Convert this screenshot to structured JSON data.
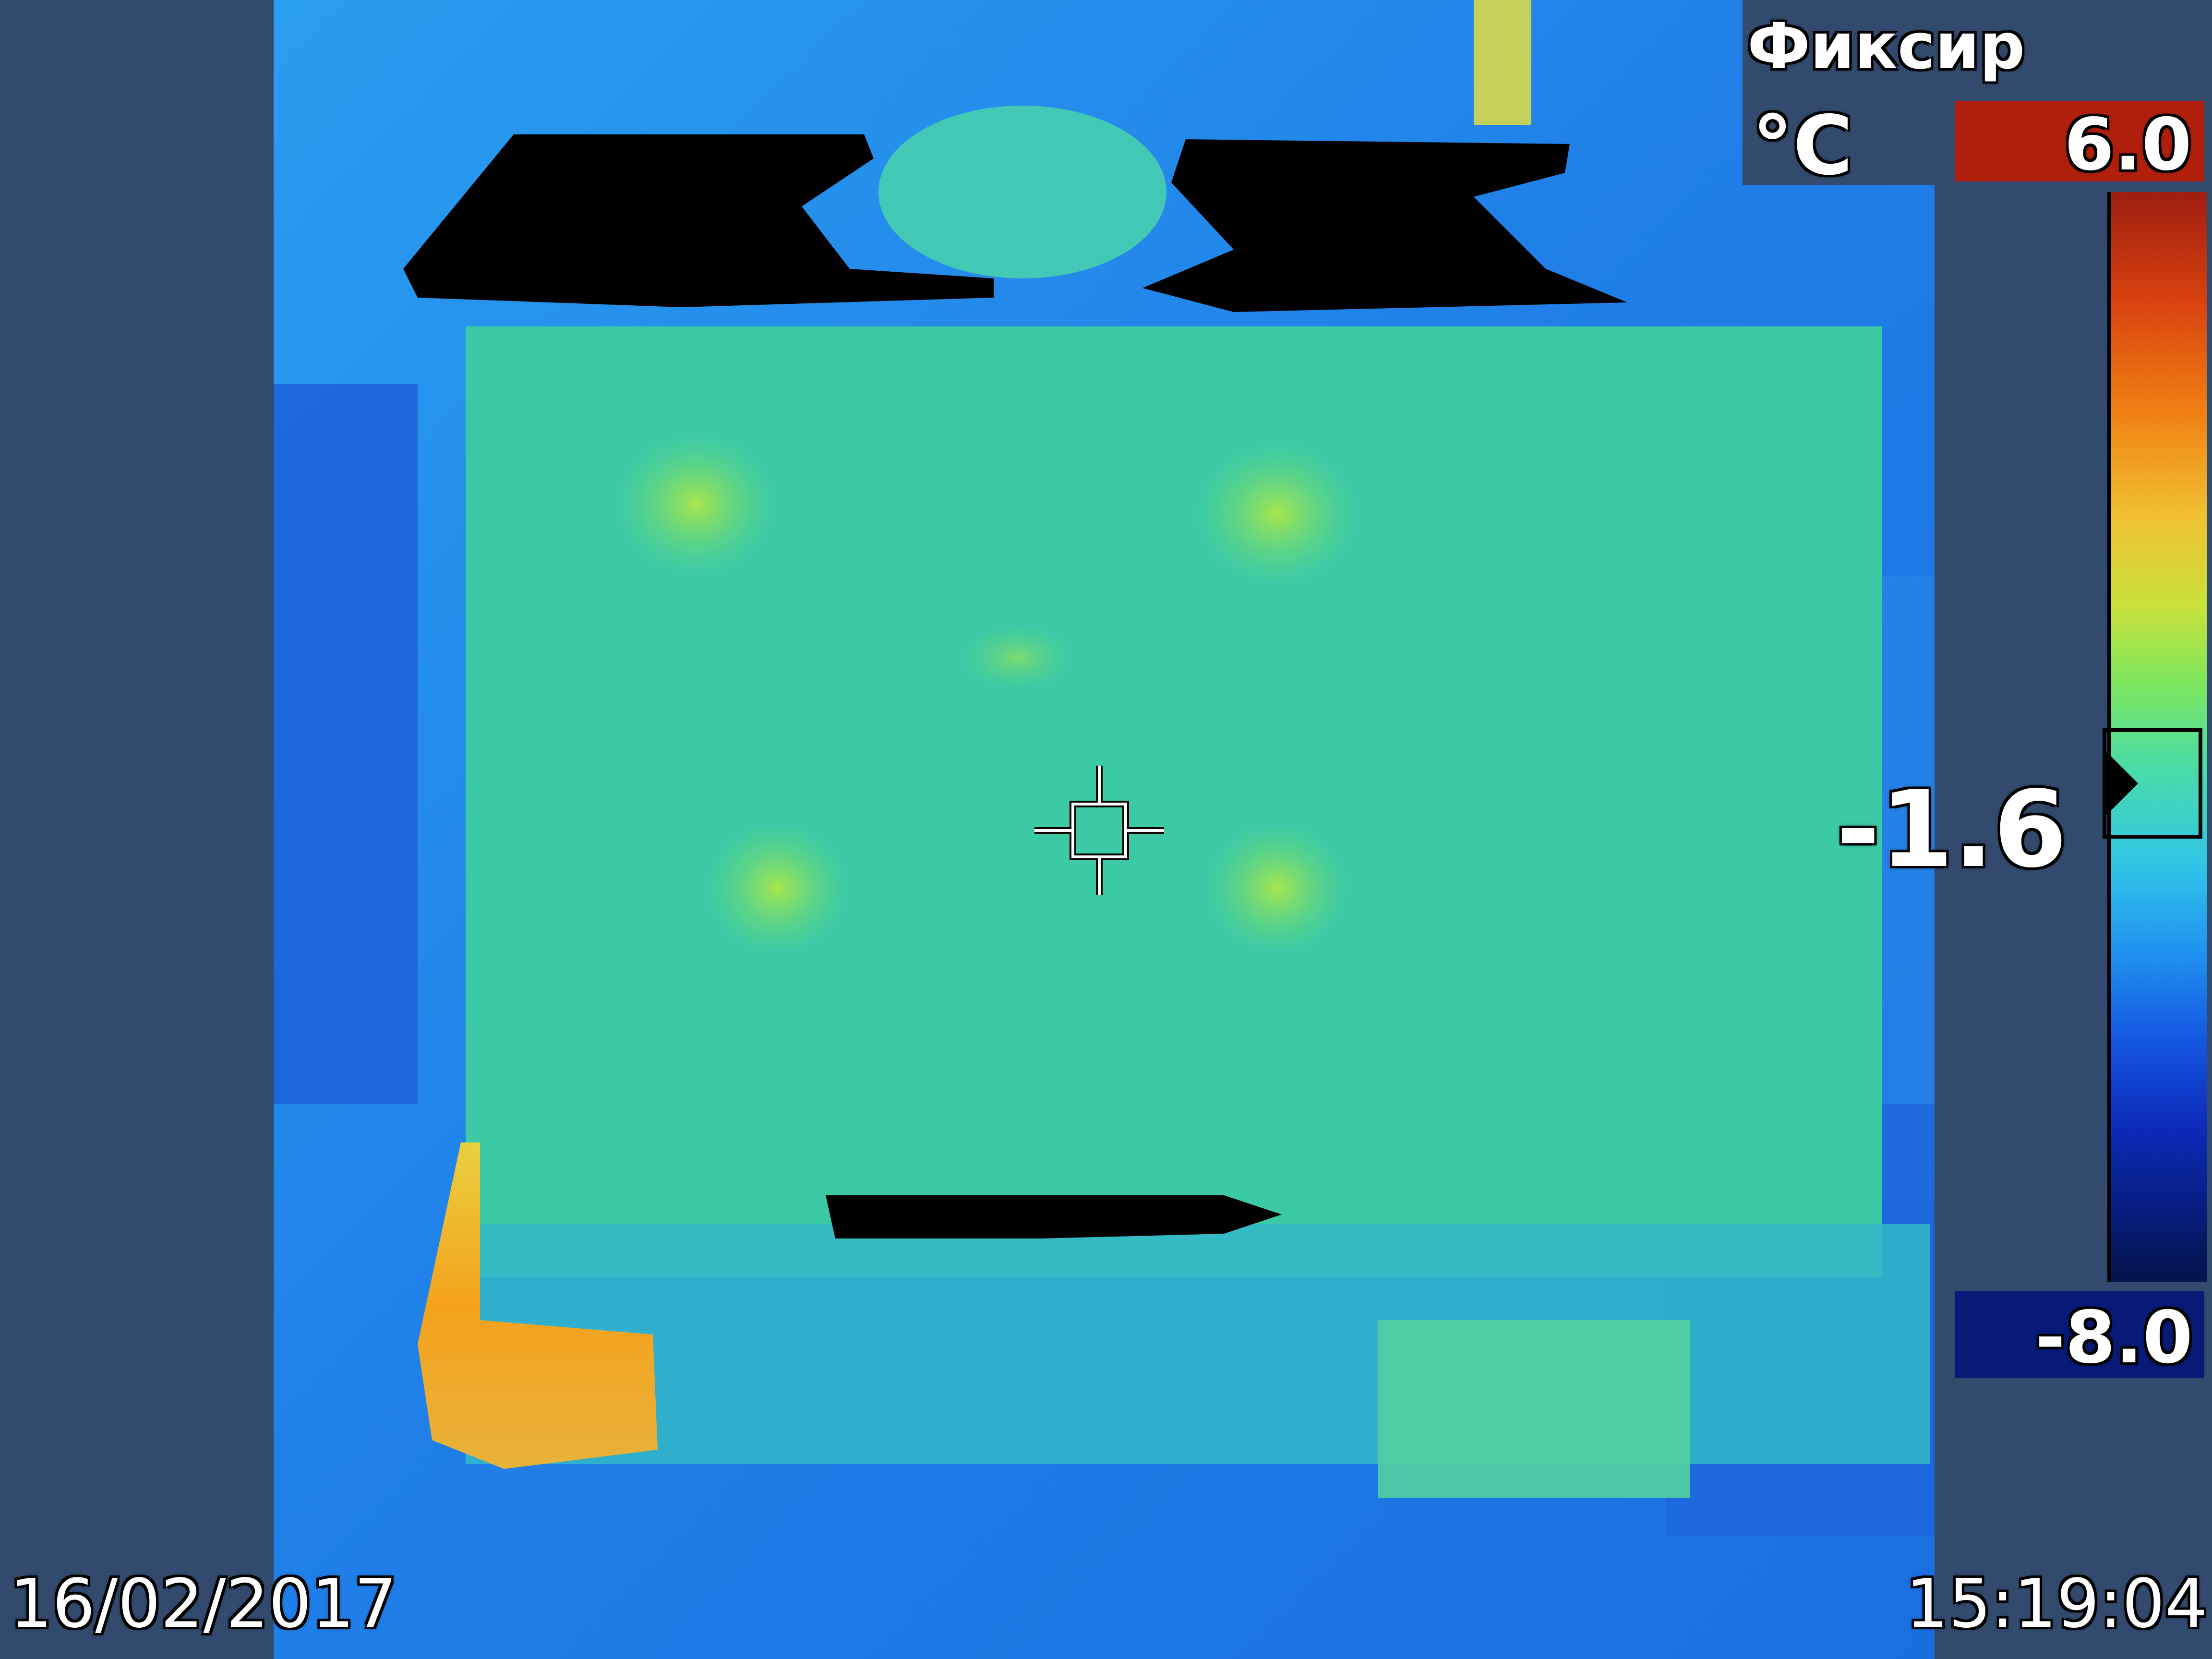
{
  "camera": {
    "mode_label": "Фиксир",
    "unit_label": "°C",
    "scale": {
      "max_label": "6.0",
      "min_label": "-8.0",
      "max_value": 6.0,
      "min_value": -8.0,
      "max_color": "#b01f0c",
      "min_color": "#081a78"
    },
    "spot": {
      "label": "-1.6",
      "value": -1.6
    },
    "date": "16/02/2017",
    "time": "15:19:04"
  },
  "colors": {
    "background": "#324a6e",
    "image_cold": "#1a6fe8",
    "image_mid": "#3bd1a6",
    "image_warm": "#f5a21c"
  },
  "icons": {
    "crosshair": "crosshair-icon",
    "scale_pointer": "scale-pointer-icon"
  }
}
